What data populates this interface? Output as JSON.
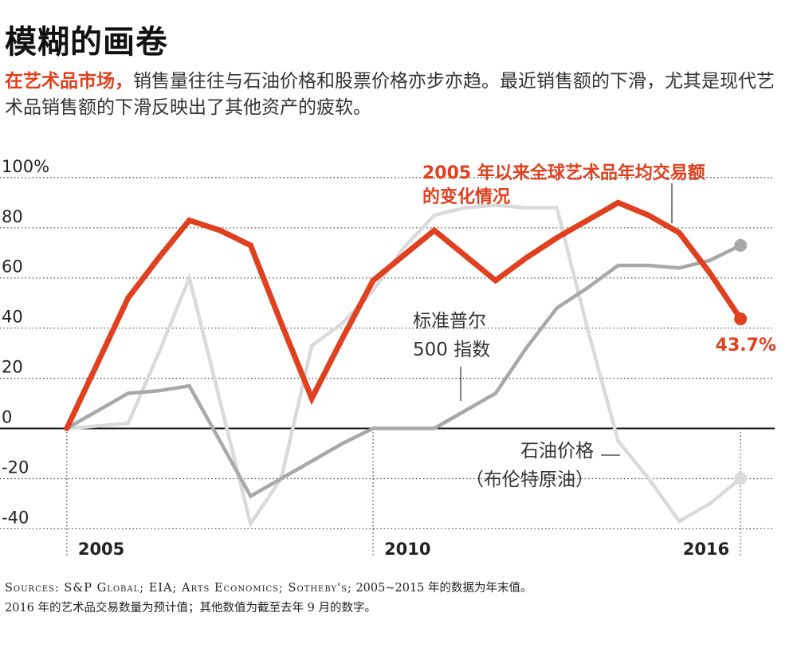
{
  "header": {
    "title": "模糊的画卷",
    "subtitle_lead": "在艺术品市场，",
    "subtitle_rest": "销售量往往与石油价格和股票价格亦步亦趋。最近销售额的下滑，尤其是现代艺术品销售额的下滑反映出了其他资产的疲软。"
  },
  "footer": {
    "sources_label": "Sources: S&P Global; EIA; Arts Economics; Sotheby's;",
    "sources_note_1": "2005~2015 年的数据为年末值。",
    "sources_note_2": "2016 年的艺术品交易数量为预计值；其他数值为截至去年 9 月的数字。"
  },
  "colors": {
    "art": "#e0401e",
    "sp500": "#a8a8a8",
    "oil": "#dadada",
    "grid": "#444444",
    "text": "#222222"
  },
  "chart_data": {
    "type": "line",
    "x": [
      2005,
      2005.5,
      2006,
      2006.5,
      2007,
      2007.5,
      2008,
      2008.5,
      2009,
      2009.5,
      2010,
      2010.5,
      2011,
      2011.5,
      2012,
      2012.5,
      2013,
      2013.5,
      2014,
      2014.5,
      2015,
      2015.5,
      2016
    ],
    "xlim": [
      2004.95,
      2016.05
    ],
    "ylim": [
      -44,
      106
    ],
    "y_ticks": [
      100,
      80,
      60,
      40,
      20,
      0,
      -20,
      -40
    ],
    "y_tick_labels": [
      "100%",
      "80",
      "60",
      "40",
      "20",
      "0",
      "-20",
      "-40"
    ],
    "x_ticks": [
      2005,
      2010,
      2016
    ],
    "x_tick_labels": [
      "2005",
      "2010",
      "2016"
    ],
    "grid": true,
    "series": [
      {
        "name": "石油价格（布伦特原油）",
        "label_line1": "石油价格",
        "label_line2": "（布伦特原油）",
        "values": [
          0,
          1,
          2,
          30,
          60,
          11,
          -38,
          -20,
          33,
          42,
          55,
          72,
          85,
          88,
          89,
          88,
          88,
          40,
          -5,
          -20,
          -37,
          -30,
          -20
        ]
      },
      {
        "name": "标准普尔500指数",
        "label_line1": "标准普尔",
        "label_line2": "500 指数",
        "values": [
          0,
          7,
          14,
          15,
          17,
          -5,
          -27,
          -20,
          -13,
          -6,
          0,
          0,
          0,
          7,
          14,
          32,
          48,
          56,
          65,
          65,
          64,
          67,
          73
        ]
      },
      {
        "name": "2005 年以来全球艺术品年均交易额的变化情况",
        "label_line1": "2005 年以来全球艺术品年均交易额",
        "label_line2": "的变化情况",
        "values": [
          0,
          26,
          52,
          68,
          83,
          79,
          73,
          42,
          12,
          36,
          59,
          69,
          79,
          69,
          59,
          68,
          76,
          83,
          90,
          85,
          78,
          62,
          43.7
        ],
        "end_label": "43.7%"
      }
    ]
  }
}
